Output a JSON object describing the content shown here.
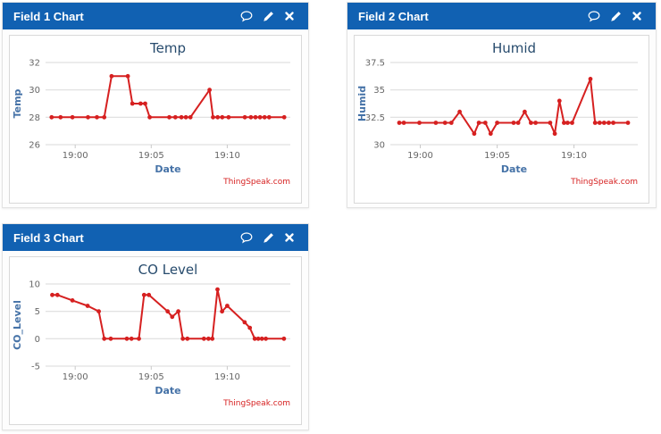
{
  "colors": {
    "header_bg": "#1161b2",
    "header_text": "#ffffff",
    "line": "#d62020",
    "grid": "#d9d9d9",
    "tick_text": "#666666",
    "axis_title": "#4572a7",
    "chart_title": "#274b6d",
    "watermark": "#d62020",
    "panel_border": "#e3e3e3",
    "chart_frame_border": "#d9d9d9"
  },
  "panels": [
    {
      "title": "Field 1 Chart",
      "icons": [
        "comment-icon",
        "edit-icon",
        "close-icon"
      ]
    },
    {
      "title": "Field 2 Chart",
      "icons": [
        "comment-icon",
        "edit-icon",
        "close-icon"
      ]
    },
    {
      "title": "Field 3 Chart",
      "icons": [
        "comment-icon",
        "edit-icon",
        "close-icon"
      ]
    }
  ],
  "chart_data": [
    {
      "type": "line",
      "title": "Temp",
      "xlabel": "Date",
      "ylabel": "Temp",
      "watermark": "ThingSpeak.com",
      "line_color": "#d62020",
      "grid": true,
      "legend": "none",
      "xlim": [
        -1.95,
        14.15
      ],
      "ylim": [
        26,
        32
      ],
      "y_ticks": [
        26,
        28,
        30,
        32
      ],
      "x_ticks": [
        {
          "t": 0,
          "label": "19:00"
        },
        {
          "t": 5,
          "label": "19:05"
        },
        {
          "t": 10,
          "label": "19:10"
        }
      ],
      "x_minutes_from_1900": [
        -1.55,
        -0.96,
        -0.18,
        0.84,
        1.43,
        1.91,
        2.39,
        3.46,
        3.76,
        4.3,
        4.6,
        4.9,
        6.19,
        6.59,
        6.99,
        7.28,
        7.58,
        8.84,
        9.07,
        9.37,
        9.67,
        10.09,
        11.16,
        11.56,
        11.86,
        12.16,
        12.46,
        12.76,
        13.75
      ],
      "values": [
        28,
        28,
        28,
        28,
        28,
        28,
        31,
        31,
        29,
        29,
        29,
        28,
        28,
        28,
        28,
        28,
        28,
        30,
        28,
        28,
        28,
        28,
        28,
        28,
        28,
        28,
        28,
        28,
        28
      ]
    },
    {
      "type": "line",
      "title": "Humid",
      "xlabel": "Date",
      "ylabel": "Humid",
      "watermark": "ThingSpeak.com",
      "line_color": "#d62020",
      "grid": true,
      "legend": "none",
      "xlim": [
        -1.95,
        14.15
      ],
      "ylim": [
        30,
        37.5
      ],
      "y_ticks": [
        30,
        32.5,
        35,
        37.5
      ],
      "x_ticks": [
        {
          "t": 0,
          "label": "19:00"
        },
        {
          "t": 5,
          "label": "19:05"
        },
        {
          "t": 10,
          "label": "19:10"
        }
      ],
      "x_minutes_from_1900": [
        -1.37,
        -1.07,
        -0.06,
        1.01,
        1.61,
        2.02,
        2.56,
        3.51,
        3.81,
        4.23,
        4.58,
        5.0,
        6.07,
        6.37,
        6.79,
        7.2,
        7.5,
        8.45,
        8.75,
        9.05,
        9.35,
        9.58,
        9.88,
        11.07,
        11.37,
        11.67,
        11.96,
        12.26,
        12.56,
        13.51
      ],
      "values": [
        32,
        32,
        32,
        32,
        32,
        32,
        33,
        31,
        32,
        32,
        31,
        32,
        32,
        32,
        33,
        32,
        32,
        32,
        31,
        34,
        32,
        32,
        32,
        36,
        32,
        32,
        32,
        32,
        32,
        32
      ]
    },
    {
      "type": "line",
      "title": "CO Level",
      "xlabel": "Date",
      "ylabel": "CO_Level",
      "watermark": "ThingSpeak.com",
      "line_color": "#d62020",
      "grid": true,
      "legend": "none",
      "xlim": [
        -1.95,
        14.15
      ],
      "ylim": [
        -5,
        10
      ],
      "y_ticks": [
        -5,
        0,
        5,
        10
      ],
      "x_ticks": [
        {
          "t": 0,
          "label": "19:00"
        },
        {
          "t": 5,
          "label": "19:05"
        },
        {
          "t": 10,
          "label": "19:10"
        }
      ],
      "x_minutes_from_1900": [
        -1.51,
        -1.17,
        -0.18,
        0.82,
        1.55,
        1.91,
        2.34,
        3.4,
        3.7,
        4.19,
        4.53,
        4.85,
        6.08,
        6.38,
        6.78,
        7.08,
        7.38,
        8.47,
        8.77,
        9.02,
        9.36,
        9.66,
        10.0,
        11.15,
        11.49,
        11.81,
        12.04,
        12.28,
        12.54,
        13.73
      ],
      "values": [
        8,
        8,
        7,
        6,
        5,
        0,
        0,
        0,
        0,
        0,
        8,
        8,
        5,
        4,
        5,
        0,
        0,
        0,
        0,
        0,
        9,
        5,
        6,
        3,
        2,
        0,
        0,
        0,
        0,
        0
      ]
    }
  ]
}
